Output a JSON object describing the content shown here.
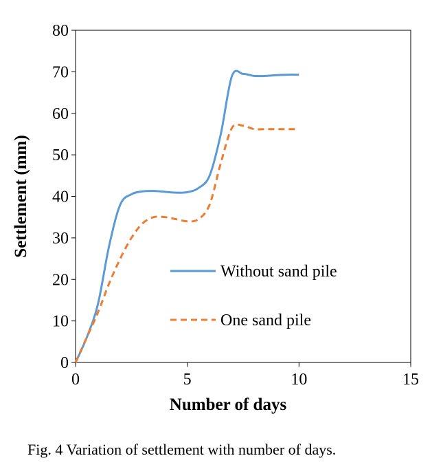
{
  "chart_data": {
    "type": "line",
    "xlabel": "Number of days",
    "ylabel": "Settlement (mm)",
    "xlim": [
      0,
      15
    ],
    "ylim": [
      0,
      80
    ],
    "xticks": [
      0,
      5,
      10,
      15
    ],
    "yticks": [
      0,
      10,
      20,
      30,
      40,
      50,
      60,
      70,
      80
    ],
    "grid": false,
    "legend_position": "center-right",
    "series": [
      {
        "name": "Without sand pile",
        "color": "#5B9BD5",
        "style": "solid",
        "x": [
          0,
          0.5,
          1,
          1.5,
          2,
          2.5,
          3,
          3.5,
          4,
          4.5,
          5,
          5.5,
          6,
          6.5,
          7,
          7.5,
          8,
          8.5,
          9,
          9.5,
          10
        ],
        "y": [
          0,
          6,
          14,
          28,
          38,
          40.5,
          41.2,
          41.3,
          41.1,
          40.9,
          41,
          42,
          45,
          55,
          69,
          69.5,
          69,
          69,
          69.2,
          69.3,
          69.3
        ]
      },
      {
        "name": "One sand pile",
        "color": "#ED7D31",
        "style": "dashed",
        "x": [
          0,
          0.5,
          1,
          1.5,
          2,
          2.5,
          3,
          3.5,
          4,
          4.5,
          5,
          5.5,
          6,
          6.5,
          7,
          7.5,
          8,
          8.5,
          9,
          9.5,
          10
        ],
        "y": [
          0,
          6,
          12,
          19,
          25,
          30,
          33.5,
          35,
          35,
          34.5,
          34,
          34.5,
          38,
          48,
          56.5,
          57,
          56.2,
          56.2,
          56.2,
          56.2,
          56.2
        ]
      }
    ]
  },
  "caption": "Fig. 4 Variation of settlement with number of days."
}
